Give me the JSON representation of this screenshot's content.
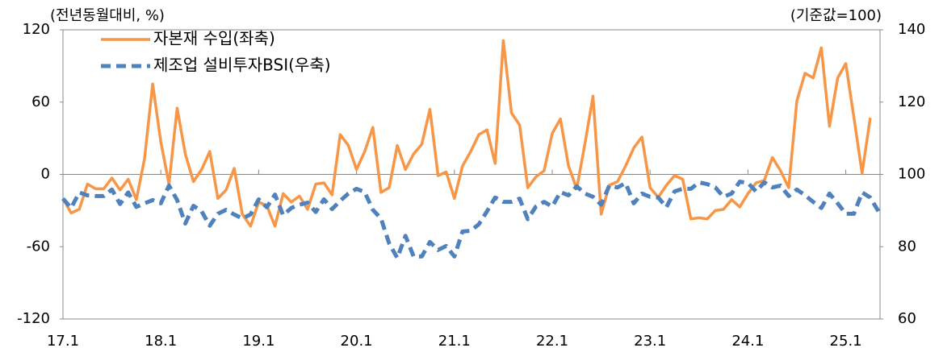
{
  "chart_data": {
    "type": "line",
    "left_label": "(전년동월대비, %)",
    "right_label": "(기준값=100)",
    "categories": [
      "17.1",
      null,
      null,
      null,
      null,
      null,
      null,
      null,
      null,
      null,
      null,
      null,
      "18.1",
      null,
      null,
      null,
      null,
      null,
      null,
      null,
      null,
      null,
      null,
      null,
      "19.1",
      null,
      null,
      null,
      null,
      null,
      null,
      null,
      null,
      null,
      null,
      null,
      "20.1",
      null,
      null,
      null,
      null,
      null,
      null,
      null,
      null,
      null,
      null,
      null,
      "21.1",
      null,
      null,
      null,
      null,
      null,
      null,
      null,
      null,
      null,
      null,
      null,
      "22.1",
      null,
      null,
      null,
      null,
      null,
      null,
      null,
      null,
      null,
      null,
      null,
      "23.1",
      null,
      null,
      null,
      null,
      null,
      null,
      null,
      null,
      null,
      null,
      null,
      "24.1",
      null,
      null,
      null,
      null,
      null,
      null,
      null,
      null,
      null,
      null,
      null,
      "25.1",
      null,
      null,
      null,
      null
    ],
    "series": [
      {
        "name": "자본재 수입(좌축)",
        "color": "#f79646",
        "line_style": "solid",
        "values": [
          -20,
          -32,
          -29,
          -8,
          -12,
          -12,
          -3,
          -13,
          -4,
          -21,
          13,
          75,
          27,
          -8,
          55,
          17,
          -6,
          4,
          19,
          -20,
          -13,
          5,
          -33,
          -43,
          -23,
          -26,
          -43,
          -16,
          -23,
          -18,
          -29,
          -8,
          -7,
          -17,
          33,
          24,
          4,
          19,
          39,
          -15,
          -11,
          24,
          4,
          17,
          25,
          54,
          -1,
          2,
          -20,
          7,
          19,
          33,
          37,
          9,
          111,
          51,
          41,
          -11,
          -2,
          3,
          34,
          46,
          7,
          -12,
          25,
          65,
          -33,
          -9,
          -6,
          7,
          22,
          31,
          -11,
          -19,
          -9,
          -1,
          -4,
          -37,
          -36,
          -37,
          -30,
          -29,
          -21,
          -27,
          -16,
          -7,
          -5,
          14,
          3,
          -11,
          61,
          84,
          80,
          105,
          40,
          80,
          92,
          47,
          1,
          47,
          null
        ]
      },
      {
        "name": "제조업 설비투자BSI(우축)",
        "color": "#4f81bd",
        "line_style": "dashed",
        "axis": "y2",
        "values": [
          93.3,
          90.7,
          95,
          94.2,
          94,
          94,
          95.8,
          91.8,
          95,
          91,
          92,
          92.9,
          92,
          96.9,
          92.9,
          86.4,
          91.3,
          89.8,
          85.8,
          89.1,
          90.2,
          88.9,
          87.8,
          88.9,
          93.1,
          90.9,
          94.4,
          88.7,
          90.7,
          91.6,
          92.2,
          89.6,
          93.1,
          90.4,
          92.7,
          94.7,
          96,
          95.1,
          90.2,
          87.8,
          80.9,
          76.9,
          83,
          77.3,
          77.3,
          81.3,
          79.1,
          80.2,
          77.3,
          84.2,
          84.4,
          86.2,
          89.8,
          93.6,
          92.4,
          92.4,
          93.3,
          87.6,
          91.1,
          92.4,
          91.1,
          95.1,
          94.2,
          96.7,
          94.7,
          93.8,
          91.6,
          96.9,
          96.4,
          97.6,
          92,
          94.7,
          93.8,
          93.6,
          90.9,
          95.3,
          96,
          96,
          97.8,
          97.3,
          96.4,
          93.8,
          94.7,
          98,
          97.6,
          95.3,
          97.8,
          96.4,
          96.9,
          94,
          95.8,
          94.2,
          92.4,
          90.7,
          94.7,
          92,
          89.1,
          89.1,
          95,
          93.6,
          89.8
        ]
      }
    ],
    "ylim": [
      -120,
      120
    ],
    "yticks": [
      -120,
      -60,
      0,
      60,
      120
    ],
    "y2lim": [
      60,
      140
    ],
    "y2ticks": [
      60,
      80,
      100,
      120,
      140
    ],
    "grid": false,
    "legend": "upper left"
  }
}
